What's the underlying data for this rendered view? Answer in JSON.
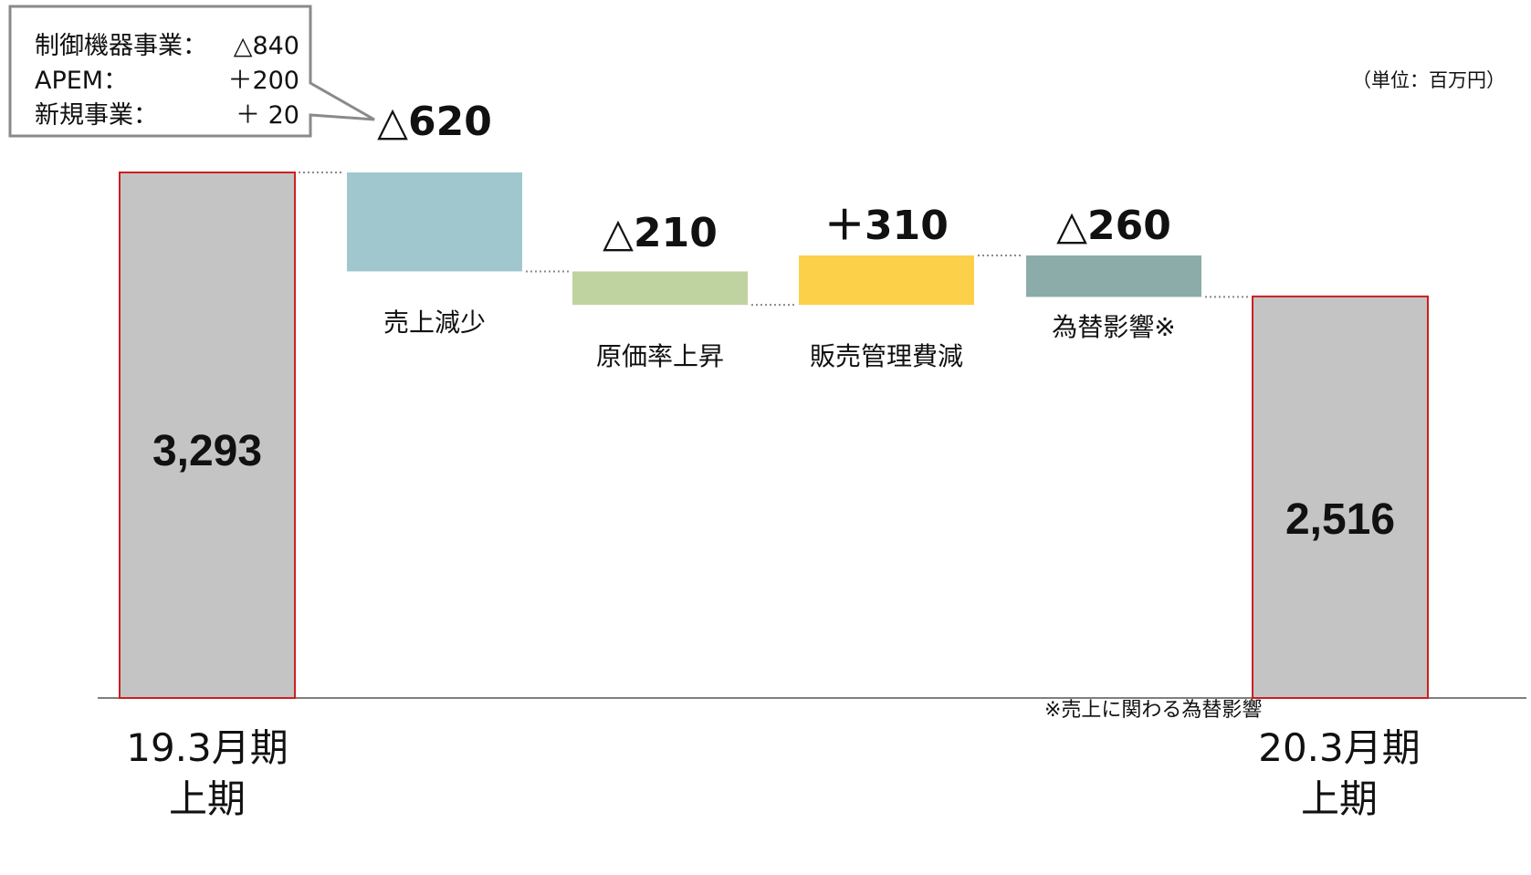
{
  "callout": {
    "rows": [
      {
        "label": "制御機器事業：",
        "value": "△840"
      },
      {
        "label": "APEM：",
        "value": "＋200"
      },
      {
        "label": "新規事業：",
        "value": "＋ 20"
      }
    ]
  },
  "unit_note": "（単位：百万円）",
  "footnote": "※売上に関わる為替影響",
  "chart_data": {
    "type": "bar",
    "subtype": "waterfall",
    "categories": [
      "19.3月期 上期",
      "売上減少",
      "原価率上昇",
      "販売管理費減",
      "為替影響※",
      "20.3月期 上期"
    ],
    "steps": [
      {
        "name": "19.3月期 上期",
        "kind": "total",
        "value": 3293,
        "label": "3,293",
        "color": "#c4c4c4"
      },
      {
        "name": "売上減少",
        "kind": "delta",
        "value": -620,
        "label": "△620",
        "color": "#a0c7cd"
      },
      {
        "name": "原価率上昇",
        "kind": "delta",
        "value": -210,
        "label": "△210",
        "color": "#bed39f"
      },
      {
        "name": "販売管理費減",
        "kind": "delta",
        "value": 310,
        "label": "＋310",
        "color": "#fdd04a"
      },
      {
        "name": "為替影響※",
        "kind": "delta",
        "value": -260,
        "label": "△260",
        "color": "#8caca9"
      },
      {
        "name": "20.3月期 上期",
        "kind": "total",
        "value": 2516,
        "label": "2,516",
        "color": "#c4c4c4"
      }
    ],
    "period_labels": [
      {
        "line1": "19.3月期",
        "line2": "上期"
      },
      {
        "line1": "20.3月期",
        "line2": "上期"
      }
    ],
    "total_border_color": "#cc1f1f",
    "connector_style": "dotted",
    "grid": false,
    "legend": "none"
  }
}
